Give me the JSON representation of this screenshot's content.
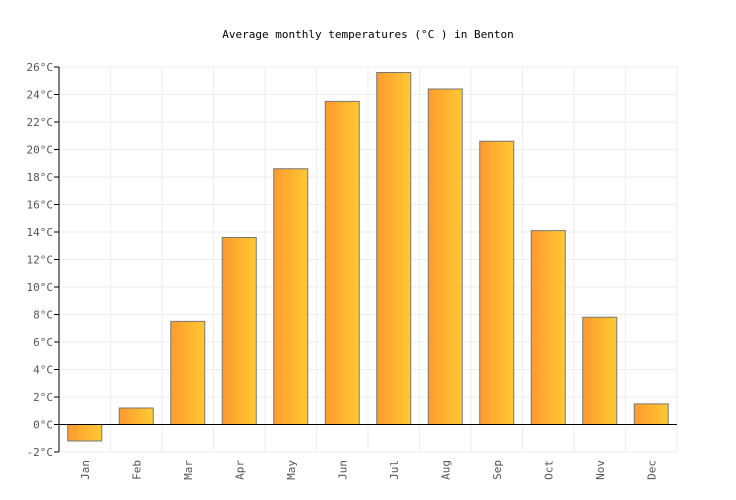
{
  "chart_data": {
    "type": "bar",
    "title": "Average monthly temperatures (°C ) in Benton",
    "categories": [
      "Jan",
      "Feb",
      "Mar",
      "Apr",
      "May",
      "Jun",
      "Jul",
      "Aug",
      "Sep",
      "Oct",
      "Nov",
      "Dec"
    ],
    "values": [
      -1.2,
      1.2,
      7.5,
      13.6,
      18.6,
      23.5,
      25.6,
      24.4,
      20.6,
      14.1,
      7.8,
      1.5
    ],
    "ylim": [
      -2,
      26
    ],
    "yticks": [
      "-2°C",
      "0°C",
      "2°C",
      "4°C",
      "6°C",
      "8°C",
      "10°C",
      "12°C",
      "14°C",
      "16°C",
      "18°C",
      "20°C",
      "22°C",
      "24°C",
      "26°C"
    ],
    "grid": true,
    "colors": {
      "bar_start": "#ff9a2e",
      "bar_end": "#ffc933",
      "bar_stroke": "#777777",
      "grid": "#eeeeee"
    }
  }
}
